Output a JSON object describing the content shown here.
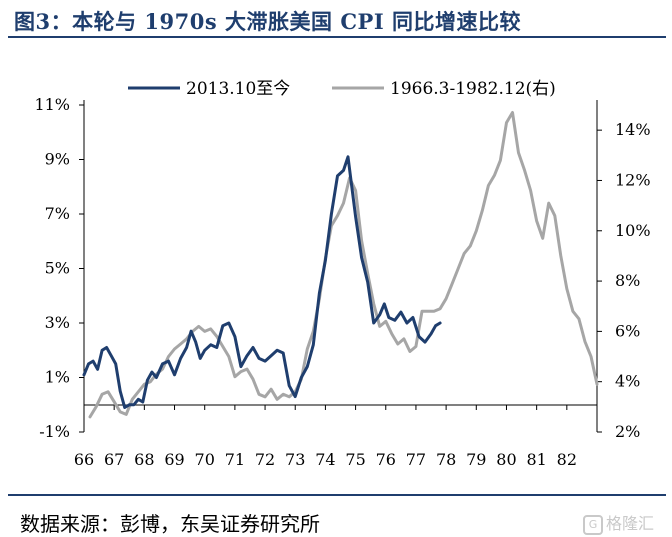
{
  "title": "图3：本轮与 1970s 大滞胀美国 CPI 同比增速比较",
  "source": "数据来源：彭博，东吴证券研究所",
  "watermark": "格隆汇",
  "watermark_icon": "g-logo-icon",
  "colors": {
    "series1": "#1f3e6e",
    "series2": "#a6a6a6",
    "accent": "#1f3e6e"
  },
  "chart_data": {
    "type": "line",
    "legend_position": "top-center",
    "grid": false,
    "x_ticks": [
      "66",
      "67",
      "68",
      "69",
      "70",
      "71",
      "72",
      "73",
      "74",
      "75",
      "76",
      "77",
      "78",
      "79",
      "80",
      "81",
      "82"
    ],
    "xlim": [
      66,
      83
    ],
    "y_left_ticks": [
      "-1%",
      "1%",
      "3%",
      "5%",
      "7%",
      "9%",
      "11%"
    ],
    "y_left_lim": [
      -1,
      11
    ],
    "y_right_ticks": [
      "2%",
      "4%",
      "6%",
      "8%",
      "10%",
      "12%",
      "14%"
    ],
    "y_right_lim": [
      2,
      15
    ],
    "series": [
      {
        "name": "2013.10至今",
        "axis": "left",
        "color": "#1f3e6e",
        "x": [
          66.0,
          66.15,
          66.3,
          66.45,
          66.6,
          66.75,
          66.9,
          67.05,
          67.2,
          67.35,
          67.5,
          67.65,
          67.8,
          67.95,
          68.1,
          68.25,
          68.4,
          68.6,
          68.8,
          69.0,
          69.2,
          69.4,
          69.55,
          69.7,
          69.85,
          70.0,
          70.2,
          70.4,
          70.6,
          70.8,
          71.0,
          71.2,
          71.4,
          71.6,
          71.8,
          72.0,
          72.2,
          72.4,
          72.6,
          72.8,
          73.0,
          73.2,
          73.4,
          73.6,
          73.8,
          74.0,
          74.2,
          74.4,
          74.6,
          74.75,
          74.85,
          75.0,
          75.2,
          75.4,
          75.6,
          75.8,
          75.95,
          76.1,
          76.3,
          76.5,
          76.7,
          76.9,
          77.1,
          77.3,
          77.5,
          77.65,
          77.8
        ],
        "values": [
          1.1,
          1.5,
          1.6,
          1.3,
          2.0,
          2.1,
          1.8,
          1.5,
          0.5,
          -0.1,
          0.0,
          0.0,
          0.2,
          0.1,
          0.9,
          1.2,
          1.0,
          1.5,
          1.6,
          1.1,
          1.7,
          2.1,
          2.7,
          2.3,
          1.7,
          2.0,
          2.2,
          2.1,
          2.9,
          3.0,
          2.5,
          1.4,
          1.8,
          2.1,
          1.7,
          1.6,
          1.8,
          2.0,
          1.9,
          0.7,
          0.3,
          1.0,
          1.4,
          2.2,
          4.1,
          5.3,
          7.0,
          8.4,
          8.6,
          9.1,
          8.2,
          6.9,
          5.4,
          4.5,
          3.0,
          3.3,
          3.7,
          3.2,
          3.1,
          3.4,
          3.0,
          3.2,
          2.5,
          2.3,
          2.6,
          2.9,
          3.0
        ]
      },
      {
        "name": "1966.3-1982.12(右)",
        "axis": "right",
        "color": "#a6a6a6",
        "x": [
          66.2,
          66.4,
          66.6,
          66.8,
          67.0,
          67.2,
          67.4,
          67.6,
          67.8,
          68.0,
          68.2,
          68.4,
          68.6,
          68.8,
          69.0,
          69.2,
          69.4,
          69.6,
          69.8,
          70.0,
          70.2,
          70.4,
          70.6,
          70.8,
          71.0,
          71.2,
          71.4,
          71.6,
          71.8,
          72.0,
          72.2,
          72.4,
          72.6,
          72.8,
          73.0,
          73.2,
          73.4,
          73.6,
          73.8,
          74.0,
          74.2,
          74.4,
          74.6,
          74.8,
          75.0,
          75.2,
          75.4,
          75.6,
          75.8,
          76.0,
          76.2,
          76.4,
          76.6,
          76.8,
          77.0,
          77.2,
          77.4,
          77.6,
          77.8,
          78.0,
          78.2,
          78.4,
          78.6,
          78.8,
          79.0,
          79.2,
          79.4,
          79.6,
          79.8,
          80.0,
          80.2,
          80.4,
          80.6,
          80.8,
          81.0,
          81.2,
          81.4,
          81.6,
          81.8,
          82.0,
          82.2,
          82.4,
          82.6,
          82.8,
          83.0
        ],
        "values": [
          2.6,
          3.0,
          3.5,
          3.6,
          3.2,
          2.8,
          2.7,
          3.3,
          3.6,
          3.9,
          4.0,
          4.3,
          4.5,
          5.0,
          5.3,
          5.5,
          5.7,
          6.0,
          6.2,
          6.0,
          6.1,
          5.8,
          5.4,
          5.0,
          4.2,
          4.4,
          4.5,
          4.1,
          3.5,
          3.4,
          3.7,
          3.3,
          3.5,
          3.4,
          3.6,
          4.1,
          5.3,
          6.0,
          7.3,
          8.9,
          10.2,
          10.6,
          11.1,
          12.1,
          11.6,
          9.6,
          8.3,
          7.1,
          6.2,
          6.4,
          5.9,
          5.5,
          5.7,
          5.2,
          5.4,
          6.8,
          6.8,
          6.8,
          6.9,
          7.3,
          7.9,
          8.5,
          9.1,
          9.4,
          10.0,
          10.8,
          11.8,
          12.2,
          12.8,
          14.3,
          14.7,
          13.1,
          12.4,
          11.6,
          10.4,
          9.7,
          11.1,
          10.6,
          9.0,
          7.7,
          6.8,
          6.5,
          5.6,
          5.0,
          3.9
        ]
      }
    ]
  }
}
